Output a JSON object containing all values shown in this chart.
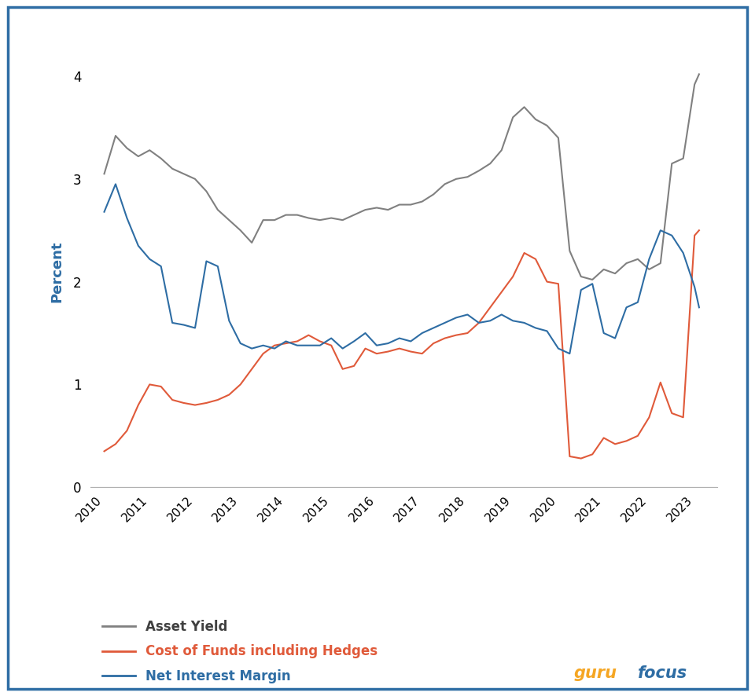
{
  "ylabel": "Percent",
  "background_color": "#ffffff",
  "border_color": "#2e6da4",
  "gurufocus_orange": "#f5a623",
  "gurufocus_blue": "#2e6da4",
  "asset_yield_color": "#808080",
  "cost_of_funds_color": "#e05a3a",
  "net_interest_margin_color": "#2e6da4",
  "ylim": [
    0,
    4.2
  ],
  "yticks": [
    0,
    1,
    2,
    3,
    4
  ],
  "x_labels": [
    "2010",
    "2011",
    "2012",
    "2013",
    "2014",
    "2015",
    "2016",
    "2017",
    "2018",
    "2019",
    "2020",
    "2021",
    "2022",
    "2023"
  ],
  "asset_yield_x": [
    2010.0,
    2010.25,
    2010.5,
    2010.75,
    2011.0,
    2011.25,
    2011.5,
    2011.75,
    2012.0,
    2012.25,
    2012.5,
    2012.75,
    2013.0,
    2013.25,
    2013.5,
    2013.75,
    2014.0,
    2014.25,
    2014.5,
    2014.75,
    2015.0,
    2015.25,
    2015.5,
    2015.75,
    2016.0,
    2016.25,
    2016.5,
    2016.75,
    2017.0,
    2017.25,
    2017.5,
    2017.75,
    2018.0,
    2018.25,
    2018.5,
    2018.75,
    2019.0,
    2019.25,
    2019.5,
    2019.75,
    2020.0,
    2020.25,
    2020.5,
    2020.75,
    2021.0,
    2021.25,
    2021.5,
    2021.75,
    2022.0,
    2022.25,
    2022.5,
    2022.75,
    2023.0,
    2023.1
  ],
  "asset_yield_y": [
    3.05,
    3.42,
    3.3,
    3.22,
    3.28,
    3.2,
    3.1,
    3.05,
    3.0,
    2.88,
    2.7,
    2.6,
    2.5,
    2.38,
    2.6,
    2.6,
    2.65,
    2.65,
    2.62,
    2.6,
    2.62,
    2.6,
    2.65,
    2.7,
    2.72,
    2.7,
    2.75,
    2.75,
    2.78,
    2.85,
    2.95,
    3.0,
    3.02,
    3.08,
    3.15,
    3.28,
    3.6,
    3.7,
    3.58,
    3.52,
    3.4,
    2.3,
    2.05,
    2.02,
    2.12,
    2.08,
    2.18,
    2.22,
    2.12,
    2.18,
    3.15,
    3.2,
    3.92,
    4.02
  ],
  "cost_of_funds_x": [
    2010.0,
    2010.25,
    2010.5,
    2010.75,
    2011.0,
    2011.25,
    2011.5,
    2011.75,
    2012.0,
    2012.25,
    2012.5,
    2012.75,
    2013.0,
    2013.25,
    2013.5,
    2013.75,
    2014.0,
    2014.25,
    2014.5,
    2014.75,
    2015.0,
    2015.25,
    2015.5,
    2015.75,
    2016.0,
    2016.25,
    2016.5,
    2016.75,
    2017.0,
    2017.25,
    2017.5,
    2017.75,
    2018.0,
    2018.25,
    2018.5,
    2018.75,
    2019.0,
    2019.25,
    2019.5,
    2019.75,
    2020.0,
    2020.25,
    2020.5,
    2020.75,
    2021.0,
    2021.25,
    2021.5,
    2021.75,
    2022.0,
    2022.25,
    2022.5,
    2022.75,
    2023.0,
    2023.1
  ],
  "cost_of_funds_y": [
    0.35,
    0.42,
    0.55,
    0.8,
    1.0,
    0.98,
    0.85,
    0.82,
    0.8,
    0.82,
    0.85,
    0.9,
    1.0,
    1.15,
    1.3,
    1.38,
    1.4,
    1.42,
    1.48,
    1.42,
    1.38,
    1.15,
    1.18,
    1.35,
    1.3,
    1.32,
    1.35,
    1.32,
    1.3,
    1.4,
    1.45,
    1.48,
    1.5,
    1.6,
    1.75,
    1.9,
    2.05,
    2.28,
    2.22,
    2.0,
    1.98,
    0.3,
    0.28,
    0.32,
    0.48,
    0.42,
    0.45,
    0.5,
    0.68,
    1.02,
    0.72,
    0.68,
    2.45,
    2.5
  ],
  "net_interest_margin_x": [
    2010.0,
    2010.25,
    2010.5,
    2010.75,
    2011.0,
    2011.25,
    2011.5,
    2011.75,
    2012.0,
    2012.25,
    2012.5,
    2012.75,
    2013.0,
    2013.25,
    2013.5,
    2013.75,
    2014.0,
    2014.25,
    2014.5,
    2014.75,
    2015.0,
    2015.25,
    2015.5,
    2015.75,
    2016.0,
    2016.25,
    2016.5,
    2016.75,
    2017.0,
    2017.25,
    2017.5,
    2017.75,
    2018.0,
    2018.25,
    2018.5,
    2018.75,
    2019.0,
    2019.25,
    2019.5,
    2019.75,
    2020.0,
    2020.25,
    2020.5,
    2020.75,
    2021.0,
    2021.25,
    2021.5,
    2021.75,
    2022.0,
    2022.25,
    2022.5,
    2022.75,
    2023.0,
    2023.1
  ],
  "net_interest_margin_y": [
    2.68,
    2.95,
    2.62,
    2.35,
    2.22,
    2.15,
    1.6,
    1.58,
    1.55,
    2.2,
    2.15,
    1.62,
    1.4,
    1.35,
    1.38,
    1.35,
    1.42,
    1.38,
    1.38,
    1.38,
    1.45,
    1.35,
    1.42,
    1.5,
    1.38,
    1.4,
    1.45,
    1.42,
    1.5,
    1.55,
    1.6,
    1.65,
    1.68,
    1.6,
    1.62,
    1.68,
    1.62,
    1.6,
    1.55,
    1.52,
    1.35,
    1.3,
    1.92,
    1.98,
    1.5,
    1.45,
    1.75,
    1.8,
    2.22,
    2.5,
    2.45,
    2.28,
    1.95,
    1.75
  ]
}
